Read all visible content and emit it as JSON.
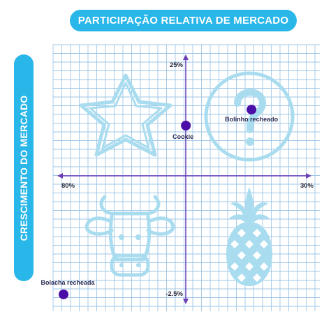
{
  "title": "PARTICIPAÇÃO RELATIVA DE MERCADO",
  "y_title": "CRESCIMENTO DO MERCADO",
  "colors": {
    "accent": "#29b6e8",
    "grid": "#9ec6e6",
    "axis": "#6a3fb5",
    "point": "#4b0fa8",
    "icon": "#a9dcef"
  },
  "chart_data": {
    "type": "scatter",
    "title": "PARTICIPAÇÃO RELATIVA DE MERCADO",
    "xlabel": "PARTICIPAÇÃO RELATIVA DE MERCADO",
    "ylabel": "CRESCIMENTO DO MERCADO",
    "x_tick_labels": {
      "left": "80%",
      "right": "30%"
    },
    "y_tick_labels": {
      "top": "25%",
      "bottom": "-2.5%"
    },
    "x_range": [
      80,
      30
    ],
    "y_range": [
      -2.5,
      25
    ],
    "grid": true,
    "quadrant_icons": [
      "star-icon",
      "question-mark-icon",
      "cow-icon",
      "pineapple-icon"
    ],
    "points": [
      {
        "label": "Cookie",
        "x": 54.7,
        "y": 17.3
      },
      {
        "label": "Bolinho recheado",
        "x": 41.5,
        "y": 19.1
      },
      {
        "label": "Bolacha recheada",
        "x": 79.3,
        "y": -1.7
      }
    ]
  }
}
